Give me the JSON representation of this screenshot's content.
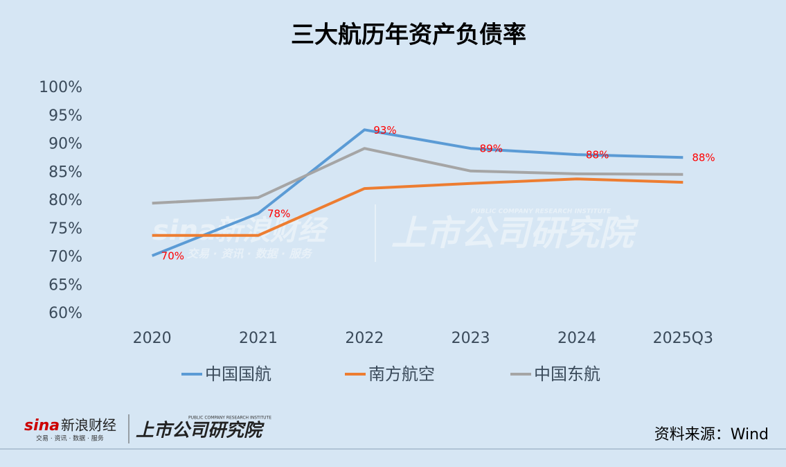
{
  "chart_data": {
    "type": "line",
    "title": "三大航历年资产负债率",
    "categories": [
      "2020",
      "2021",
      "2022",
      "2023",
      "2024",
      "2025Q3"
    ],
    "series": [
      {
        "name": "中国国航",
        "color": "#5b9bd5",
        "values": [
          70.3,
          77.8,
          92.6,
          89.3,
          88.2,
          87.7
        ],
        "value_labels": [
          "70%",
          "78%",
          "93%",
          "89%",
          "88%",
          "88%"
        ]
      },
      {
        "name": "南方航空",
        "color": "#ed7d31",
        "values": [
          73.9,
          73.9,
          82.2,
          83.1,
          83.9,
          83.3
        ]
      },
      {
        "name": "中国东航",
        "color": "#a5a5a5",
        "values": [
          79.6,
          80.6,
          89.3,
          85.3,
          84.8,
          84.7
        ]
      }
    ],
    "ylim": [
      60,
      100
    ],
    "yticks": [
      {
        "value": 60,
        "label": "60%"
      },
      {
        "value": 65,
        "label": "65%"
      },
      {
        "value": 70,
        "label": "70%"
      },
      {
        "value": 75,
        "label": "75%"
      },
      {
        "value": 80,
        "label": "80%"
      },
      {
        "value": 85,
        "label": "85%"
      },
      {
        "value": 90,
        "label": "90%"
      },
      {
        "value": 95,
        "label": "95%"
      },
      {
        "value": 100,
        "label": "100%"
      }
    ],
    "grid": false,
    "legend": "bottom",
    "label_color": "#ff0000",
    "source": "资料来源：Wind"
  },
  "branding": {
    "sina": "sina",
    "sina_name": "新浪财经",
    "sina_tagline": "交易 · 资讯 · 数据 · 服务",
    "institute": "上市公司研究院",
    "institute_en": "PUBLIC COMPANY RESEARCH INSTITUTE"
  }
}
